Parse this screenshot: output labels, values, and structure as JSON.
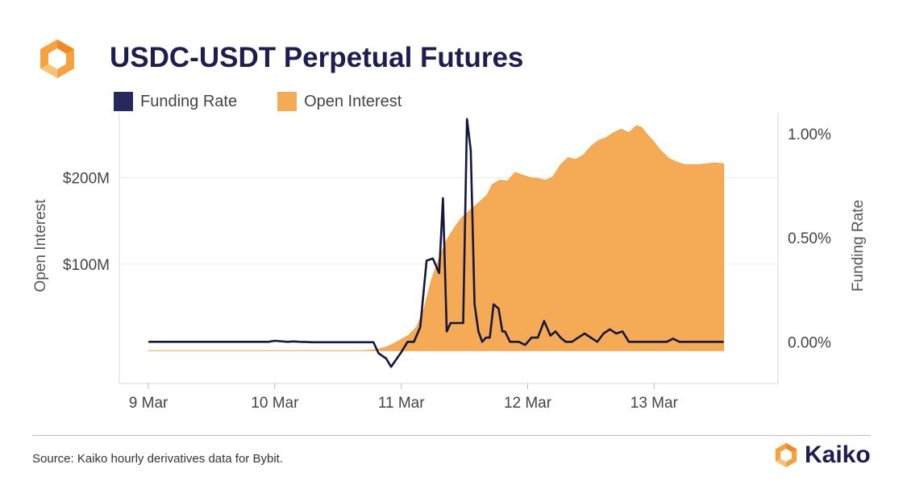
{
  "header": {
    "title": "USDC-USDT Perpetual Futures"
  },
  "legend": {
    "items": [
      {
        "label": "Funding Rate",
        "color": "#27285e"
      },
      {
        "label": "Open Interest",
        "color": "#f5aa55"
      }
    ]
  },
  "footer": {
    "source": "Source: Kaiko hourly derivatives data for Bybit.",
    "brand": "Kaiko"
  },
  "icons": {
    "top_logo": "kaiko-hexagon-logo-icon",
    "brand_logo": "kaiko-hexagon-logo-icon"
  },
  "chart_data": {
    "type": "area",
    "x_unit": "days",
    "x_ticks": [
      {
        "label": "9 Mar",
        "value": 9
      },
      {
        "label": "10 Mar",
        "value": 10
      },
      {
        "label": "11 Mar",
        "value": 11
      },
      {
        "label": "12 Mar",
        "value": 12
      },
      {
        "label": "13 Mar",
        "value": 13
      }
    ],
    "xlim": [
      8.77,
      13.98
    ],
    "left_axis": {
      "label": "Open Interest",
      "ylim": [
        -38,
        275
      ],
      "ticks": [
        {
          "value": 100,
          "label": "$100M"
        },
        {
          "value": 200,
          "label": "$200M"
        }
      ]
    },
    "right_axis": {
      "label": "Funding Rate",
      "ylim": [
        -0.2,
        1.1
      ],
      "ticks": [
        {
          "value": 0.0,
          "label": "0.00%"
        },
        {
          "value": 0.5,
          "label": "0.50%"
        },
        {
          "value": 1.0,
          "label": "1.00%"
        }
      ]
    },
    "grid": true,
    "series": [
      {
        "name": "Open Interest",
        "axis": "left",
        "render": "area",
        "color": "#f5aa55",
        "unit": "$M",
        "x": [
          9.0,
          10.0,
          10.7,
          10.8,
          10.88,
          10.94,
          11.0,
          11.06,
          11.12,
          11.18,
          11.24,
          11.3,
          11.36,
          11.42,
          11.48,
          11.55,
          11.62,
          11.68,
          11.72,
          11.78,
          11.84,
          11.9,
          11.96,
          12.02,
          12.08,
          12.14,
          12.2,
          12.26,
          12.32,
          12.38,
          12.44,
          12.5,
          12.56,
          12.62,
          12.68,
          12.74,
          12.8,
          12.86,
          12.9,
          12.94,
          13.0,
          13.06,
          13.12,
          13.18,
          13.24,
          13.3,
          13.36,
          13.42,
          13.48,
          13.55
        ],
        "y": [
          0,
          0,
          0,
          1,
          4,
          8,
          13,
          18,
          27,
          48,
          82,
          107,
          128,
          142,
          154,
          163,
          172,
          180,
          192,
          197,
          196,
          206,
          203,
          200,
          199,
          197,
          201,
          215,
          223,
          221,
          226,
          236,
          243,
          246,
          252,
          256,
          252,
          260,
          258,
          251,
          241,
          230,
          222,
          218,
          215,
          215,
          215,
          216,
          217,
          216
        ]
      },
      {
        "name": "Funding Rate",
        "axis": "right",
        "render": "line",
        "color": "#151640",
        "unit": "%",
        "x": [
          9.0,
          9.5,
          9.95,
          10.0,
          10.1,
          10.15,
          10.2,
          10.3,
          10.5,
          10.78,
          10.82,
          10.88,
          10.92,
          10.96,
          11.0,
          11.05,
          11.1,
          11.15,
          11.2,
          11.25,
          11.3,
          11.33,
          11.36,
          11.39,
          11.44,
          11.49,
          11.52,
          11.55,
          11.58,
          11.61,
          11.64,
          11.67,
          11.7,
          11.73,
          11.77,
          11.8,
          11.82,
          11.86,
          11.89,
          11.93,
          11.98,
          12.03,
          12.08,
          12.13,
          12.18,
          12.22,
          12.26,
          12.3,
          12.35,
          12.4,
          12.45,
          12.5,
          12.55,
          12.6,
          12.65,
          12.7,
          12.75,
          12.8,
          12.85,
          12.9,
          12.95,
          13.0,
          13.05,
          13.1,
          13.15,
          13.2,
          13.25,
          13.3,
          13.35,
          13.4,
          13.45,
          13.5,
          13.55
        ],
        "y": [
          0.0,
          0.0,
          0.0,
          0.005,
          0.0,
          0.002,
          0.0,
          -0.002,
          -0.002,
          -0.002,
          -0.055,
          -0.08,
          -0.12,
          -0.085,
          -0.05,
          0.0,
          0.0,
          0.07,
          0.39,
          0.4,
          0.33,
          0.69,
          0.05,
          0.09,
          0.09,
          0.09,
          1.07,
          0.92,
          0.18,
          0.05,
          0.0,
          0.02,
          0.02,
          0.18,
          0.16,
          0.05,
          0.05,
          0.0,
          0.0,
          0.0,
          -0.015,
          0.02,
          0.02,
          0.1,
          0.03,
          0.05,
          0.02,
          0.0,
          0.0,
          0.02,
          0.04,
          0.02,
          0.0,
          0.04,
          0.06,
          0.04,
          0.05,
          0.0,
          0.0,
          0.0,
          0.0,
          0.0,
          0.0,
          0.0,
          0.015,
          0.0,
          0.0,
          0.0,
          0.0,
          0.0,
          0.0,
          0.0,
          0.0
        ]
      }
    ]
  }
}
